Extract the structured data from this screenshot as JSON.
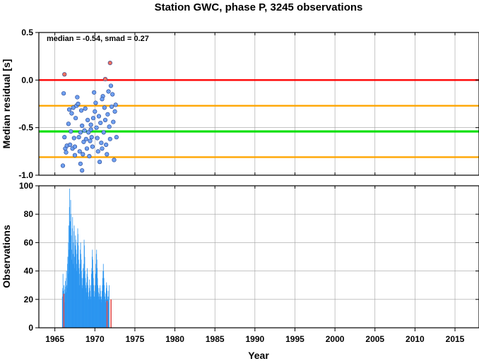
{
  "title": "Station GWC, phase P, 3245 observations",
  "chart_data": [
    {
      "id": "residual-panel",
      "type": "scatter",
      "ylabel": "Median residual [s]",
      "xlim": [
        1963,
        2018
      ],
      "ylim": [
        -1.0,
        0.5
      ],
      "yticks": [
        0.5,
        0.0,
        -0.5,
        -1.0
      ],
      "ytick_labels": [
        "0.5",
        "0.0",
        "-0.5",
        "-1.0"
      ],
      "grid": true,
      "annotation": "median = -0.54, smad = 0.27",
      "reference_lines": [
        {
          "y": 0.0,
          "color": "#ff0000"
        },
        {
          "y": -0.27,
          "color": "#ffa500"
        },
        {
          "y": -0.54,
          "color": "#00e000"
        },
        {
          "y": -0.81,
          "color": "#ffa500"
        }
      ],
      "point_colors": {
        "inlier": "#6fa0f0",
        "outlier": "#f07060"
      },
      "points": [
        {
          "x": 1966.2,
          "y": 0.06,
          "outlier": true
        },
        {
          "x": 1971.3,
          "y": 0.01,
          "outlier": true
        },
        {
          "x": 1971.9,
          "y": 0.18,
          "outlier": true
        },
        {
          "x": 1966.1,
          "y": -0.14
        },
        {
          "x": 1966.2,
          "y": -0.6
        },
        {
          "x": 1966.3,
          "y": -0.72
        },
        {
          "x": 1966.4,
          "y": -0.76
        },
        {
          "x": 1966.5,
          "y": -0.69
        },
        {
          "x": 1966.7,
          "y": -0.46
        },
        {
          "x": 1966.8,
          "y": -0.31
        },
        {
          "x": 1966.9,
          "y": -0.68
        },
        {
          "x": 1967.0,
          "y": -0.54
        },
        {
          "x": 1967.1,
          "y": -0.35
        },
        {
          "x": 1967.2,
          "y": -0.72
        },
        {
          "x": 1967.3,
          "y": -0.29
        },
        {
          "x": 1967.4,
          "y": -0.61
        },
        {
          "x": 1967.5,
          "y": -0.7
        },
        {
          "x": 1967.6,
          "y": -0.4
        },
        {
          "x": 1967.7,
          "y": -0.27
        },
        {
          "x": 1967.8,
          "y": -0.18
        },
        {
          "x": 1967.9,
          "y": -0.25
        },
        {
          "x": 1968.0,
          "y": -0.6
        },
        {
          "x": 1968.1,
          "y": -0.75
        },
        {
          "x": 1968.2,
          "y": -0.55
        },
        {
          "x": 1968.3,
          "y": -0.32
        },
        {
          "x": 1968.4,
          "y": -0.48
        },
        {
          "x": 1968.5,
          "y": -0.78
        },
        {
          "x": 1968.6,
          "y": -0.65
        },
        {
          "x": 1968.7,
          "y": -0.53
        },
        {
          "x": 1968.8,
          "y": -0.3
        },
        {
          "x": 1968.9,
          "y": -0.62
        },
        {
          "x": 1969.0,
          "y": -0.72
        },
        {
          "x": 1969.1,
          "y": -0.42
        },
        {
          "x": 1969.2,
          "y": -0.55
        },
        {
          "x": 1969.3,
          "y": -0.8
        },
        {
          "x": 1969.4,
          "y": -0.64
        },
        {
          "x": 1969.5,
          "y": -0.52
        },
        {
          "x": 1969.6,
          "y": -0.6
        },
        {
          "x": 1969.7,
          "y": -0.7
        },
        {
          "x": 1969.8,
          "y": -0.4
        },
        {
          "x": 1969.9,
          "y": -0.13
        },
        {
          "x": 1970.0,
          "y": -0.33
        },
        {
          "x": 1970.1,
          "y": -0.24
        },
        {
          "x": 1970.2,
          "y": -0.5
        },
        {
          "x": 1970.3,
          "y": -0.61
        },
        {
          "x": 1970.4,
          "y": -0.75
        },
        {
          "x": 1970.5,
          "y": -0.38
        },
        {
          "x": 1970.6,
          "y": -0.86
        },
        {
          "x": 1970.7,
          "y": -0.45
        },
        {
          "x": 1970.8,
          "y": -0.66
        },
        {
          "x": 1970.9,
          "y": -0.72
        },
        {
          "x": 1971.0,
          "y": -0.17
        },
        {
          "x": 1971.1,
          "y": -0.55
        },
        {
          "x": 1971.2,
          "y": -0.29
        },
        {
          "x": 1971.3,
          "y": -0.42
        },
        {
          "x": 1971.4,
          "y": -0.68
        },
        {
          "x": 1971.5,
          "y": -0.78
        },
        {
          "x": 1971.6,
          "y": -0.36
        },
        {
          "x": 1971.7,
          "y": -0.12
        },
        {
          "x": 1971.8,
          "y": -0.49
        },
        {
          "x": 1971.9,
          "y": -0.62
        },
        {
          "x": 1972.0,
          "y": -0.06
        },
        {
          "x": 1972.1,
          "y": -0.28
        },
        {
          "x": 1972.2,
          "y": -0.15
        },
        {
          "x": 1972.3,
          "y": -0.44
        },
        {
          "x": 1972.4,
          "y": -0.84
        },
        {
          "x": 1972.5,
          "y": -0.33
        },
        {
          "x": 1972.6,
          "y": -0.26
        },
        {
          "x": 1972.7,
          "y": -0.6
        },
        {
          "x": 1966.0,
          "y": -0.9
        },
        {
          "x": 1968.2,
          "y": -0.88
        },
        {
          "x": 1968.4,
          "y": -0.95
        },
        {
          "x": 1967.5,
          "y": -0.79
        },
        {
          "x": 1969.5,
          "y": -0.47
        },
        {
          "x": 1970.9,
          "y": -0.2
        }
      ]
    },
    {
      "id": "observations-panel",
      "type": "bar",
      "xlabel": "Year",
      "ylabel": "Observations",
      "xlim": [
        1963,
        2018
      ],
      "ylim": [
        0,
        100
      ],
      "xticks": [
        1965,
        1970,
        1975,
        1980,
        1985,
        1990,
        1995,
        2000,
        2005,
        2010,
        2015
      ],
      "xtick_labels": [
        "1965",
        "1970",
        "1975",
        "1980",
        "1985",
        "1990",
        "1995",
        "2000",
        "2005",
        "2010",
        "2015"
      ],
      "yticks": [
        0,
        20,
        40,
        60,
        80,
        100
      ],
      "ytick_labels": [
        "0",
        "20",
        "40",
        "60",
        "80",
        "100"
      ],
      "grid": true,
      "bar_color": "#2b95f0",
      "highlight_color": "#e05050",
      "x_start": 1965.9,
      "bin_width": 0.04,
      "values": [
        22,
        28,
        38,
        26,
        20,
        30,
        24,
        18,
        27,
        33,
        29,
        25,
        35,
        40,
        30,
        28,
        45,
        50,
        38,
        60,
        72,
        55,
        85,
        98,
        75,
        70,
        90,
        80,
        65,
        55,
        48,
        70,
        78,
        52,
        45,
        60,
        68,
        72,
        50,
        42,
        58,
        65,
        62,
        55,
        45,
        40,
        52,
        60,
        70,
        66,
        58,
        48,
        42,
        38,
        30,
        45,
        55,
        60,
        52,
        48,
        40,
        35,
        30,
        28,
        35,
        42,
        38,
        45,
        62,
        58,
        50,
        40,
        35,
        30,
        28,
        25,
        32,
        38,
        42,
        36,
        30,
        25,
        22,
        20,
        28,
        34,
        30,
        26,
        22,
        20,
        30,
        38,
        42,
        50,
        55,
        48,
        40,
        35,
        30,
        26,
        22,
        20,
        25,
        30,
        38,
        45,
        52,
        55,
        48,
        42,
        35,
        30,
        28,
        25,
        22,
        20,
        24,
        28,
        30,
        26,
        22,
        20,
        18,
        22,
        26,
        30,
        35,
        40,
        45,
        40,
        35,
        30,
        25,
        22,
        20,
        18,
        24,
        28,
        32,
        30,
        26,
        22,
        20,
        18,
        22,
        26,
        30
      ],
      "highlights": [
        {
          "x": 1966.05,
          "value": 24
        },
        {
          "x": 1971.45,
          "value": 19
        },
        {
          "x": 1971.95,
          "value": 20
        }
      ]
    }
  ]
}
